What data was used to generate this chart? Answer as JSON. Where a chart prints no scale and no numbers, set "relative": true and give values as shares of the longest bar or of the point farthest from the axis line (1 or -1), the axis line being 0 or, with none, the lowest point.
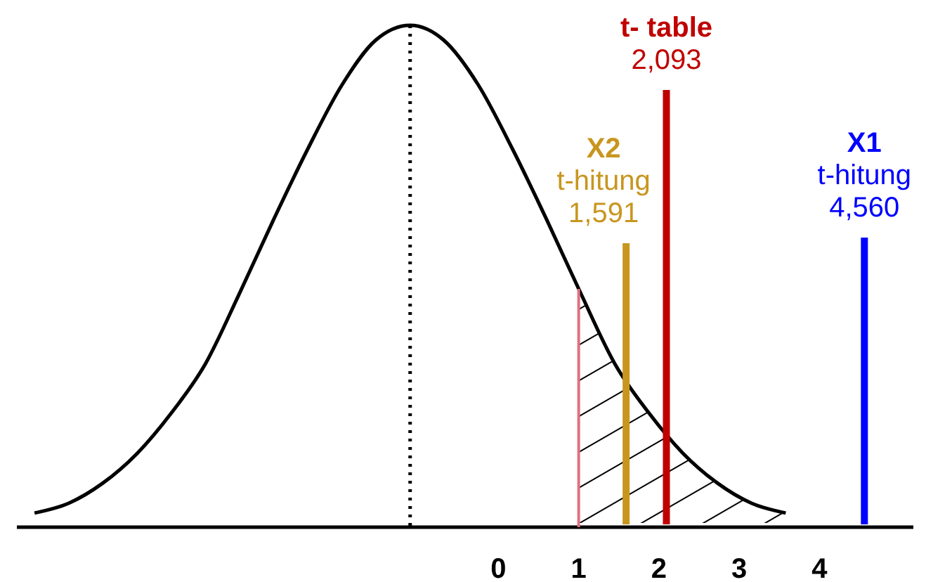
{
  "chart_data": {
    "type": "line",
    "relative": true,
    "x": [
      -5.78,
      -5.35,
      -4.93,
      -4.5,
      -4.08,
      -3.65,
      -3.23,
      -2.8,
      -2.38,
      -1.95,
      -1.53,
      -1.1,
      -0.68,
      -0.25,
      0.18,
      0.6,
      1.03,
      1.45,
      1.88,
      2.3,
      2.73,
      3.15,
      3.58
    ],
    "series": [
      {
        "color": "#000000",
        "values": [
          0.02,
          0.04,
          0.08,
          0.14,
          0.22,
          0.32,
          0.46,
          0.61,
          0.75,
          0.88,
          0.97,
          1,
          0.97,
          0.88,
          0.75,
          0.61,
          0.46,
          0.32,
          0.22,
          0.14,
          0.08,
          0.04,
          0.02
        ]
      }
    ],
    "xlim": [
      -6,
      5.17
    ],
    "xticks": [
      0,
      1,
      2,
      3,
      4
    ],
    "ref_lines": [
      {
        "axis": "x",
        "value": -1.1,
        "color": "#000000",
        "line_style": "dotted"
      },
      {
        "axis": "x",
        "value": 1,
        "color": "#e07080"
      },
      {
        "axis": "x",
        "value": 1.591,
        "color": "#c8961e",
        "label": "X2\nt-hitung\n1,591"
      },
      {
        "axis": "x",
        "value": 2.093,
        "color": "#c00000",
        "label": "t- table\n2,093"
      },
      {
        "axis": "x",
        "value": 4.56,
        "color": "#0000ff",
        "label": "X1\nt-hitung\n4,560"
      }
    ]
  }
}
